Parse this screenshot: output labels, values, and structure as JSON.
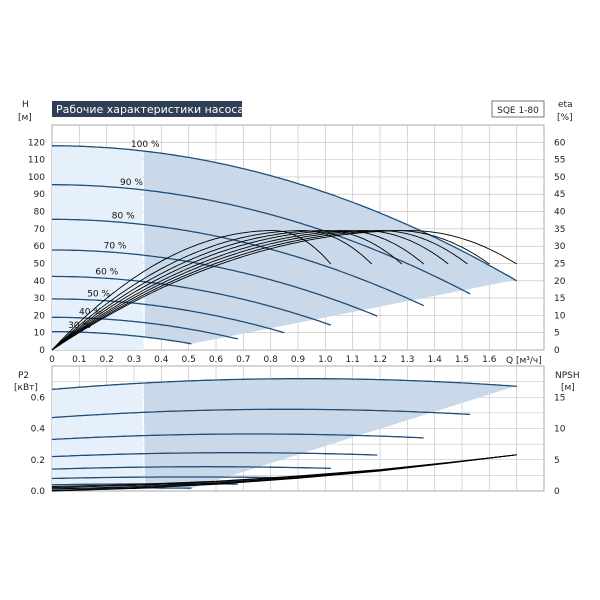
{
  "header": {
    "title": "Рабочие характеристики насоса",
    "model": "SQE 1-80"
  },
  "colors": {
    "curve": "#1f4e79",
    "region_fill": "#c9d9ea",
    "region_fill_light": "#e6f0fa",
    "eta_curve": "#000000",
    "grid": "#bdbdbd",
    "title_bg": "#2f3f55"
  },
  "chart_data": [
    {
      "type": "line",
      "name": "head",
      "left_axis_label": [
        "H",
        "[м]"
      ],
      "right_axis_label": [
        "eta",
        "[%]"
      ],
      "xlabel": "Q [м³/ч]",
      "xlim": [
        0,
        1.8
      ],
      "ylim": [
        0,
        130
      ],
      "y2lim": [
        0,
        65
      ],
      "x_ticks": [
        "0",
        "0.1",
        "0.2",
        "0.3",
        "0.4",
        "0.5",
        "0.6",
        "0.7",
        "0.8",
        "0.9",
        "1.0",
        "1.1",
        "1.2",
        "1.3",
        "1.4",
        "1.5",
        "1.6"
      ],
      "y_ticks": [
        "0",
        "10",
        "20",
        "30",
        "40",
        "50",
        "60",
        "70",
        "80",
        "90",
        "100",
        "110",
        "120"
      ],
      "y2_ticks": [
        "0",
        "5",
        "10",
        "15",
        "20",
        "25",
        "30",
        "35",
        "40",
        "45",
        "50",
        "55",
        "60"
      ],
      "grid": true,
      "series": [
        {
          "name": "100 %",
          "h0": 118,
          "qmax": 1.7,
          "hend": 40
        },
        {
          "name": "90 %",
          "h0": 95.5,
          "qmax": 1.53,
          "hend": 32.4
        },
        {
          "name": "80 %",
          "h0": 75.5,
          "qmax": 1.36,
          "hend": 25.6
        },
        {
          "name": "70 %",
          "h0": 57.8,
          "qmax": 1.19,
          "hend": 19.6
        },
        {
          "name": "60 %",
          "h0": 42.5,
          "qmax": 1.02,
          "hend": 14.4
        },
        {
          "name": "50 %",
          "h0": 29.5,
          "qmax": 0.85,
          "hend": 10.0
        },
        {
          "name": "40 %",
          "h0": 18.9,
          "qmax": 0.68,
          "hend": 6.4
        },
        {
          "name": "30 %",
          "h0": 10.6,
          "qmax": 0.51,
          "hend": 3.6
        }
      ],
      "eta_curves": [
        {
          "qpeak": 0.81,
          "peak": 34.5,
          "qend": 1.02
        },
        {
          "qpeak": 0.92,
          "peak": 34.5,
          "qend": 1.17
        },
        {
          "qpeak": 1.0,
          "peak": 34.5,
          "qend": 1.28
        },
        {
          "qpeak": 1.07,
          "peak": 34.5,
          "qend": 1.36
        },
        {
          "qpeak": 1.14,
          "peak": 34.5,
          "qend": 1.45
        },
        {
          "qpeak": 1.2,
          "peak": 34.5,
          "qend": 1.52
        },
        {
          "qpeak": 1.26,
          "peak": 34.5,
          "qend": 1.6
        },
        {
          "qpeak": 1.31,
          "peak": 34.5,
          "qend": 1.7
        }
      ]
    },
    {
      "type": "line",
      "name": "power",
      "left_axis_label": [
        "P2",
        "[кВт]"
      ],
      "right_axis_label": [
        "NPSH",
        "[м]"
      ],
      "xlim": [
        0,
        1.8
      ],
      "ylim": [
        0,
        0.8
      ],
      "y2lim": [
        0,
        20
      ],
      "y_ticks": [
        "0.0",
        "0.2",
        "0.4",
        "0.6"
      ],
      "y2_ticks": [
        "0",
        "5",
        "10",
        "15"
      ],
      "grid": true,
      "series": [
        {
          "name": "100 %",
          "p0": 0.65,
          "qmax": 1.7,
          "pend": 0.67
        },
        {
          "name": "90 %",
          "p0": 0.47,
          "qmax": 1.53,
          "pend": 0.49
        },
        {
          "name": "80 %",
          "p0": 0.33,
          "qmax": 1.36,
          "pend": 0.34
        },
        {
          "name": "70 %",
          "p0": 0.22,
          "qmax": 1.19,
          "pend": 0.23
        },
        {
          "name": "60 %",
          "p0": 0.14,
          "qmax": 1.02,
          "pend": 0.145
        },
        {
          "name": "50 %",
          "p0": 0.08,
          "qmax": 0.85,
          "pend": 0.085
        },
        {
          "name": "40 %",
          "p0": 0.04,
          "qmax": 0.68,
          "pend": 0.044
        },
        {
          "name": "30 %",
          "p0": 0.017,
          "qmax": 0.51,
          "pend": 0.018
        }
      ],
      "npsh_curve": {
        "q": [
          0,
          0.3,
          0.6,
          0.9,
          1.2,
          1.45,
          1.7
        ],
        "npsh": [
          0.3,
          0.7,
          1.3,
          2.2,
          3.3,
          4.5,
          5.8
        ]
      }
    }
  ]
}
